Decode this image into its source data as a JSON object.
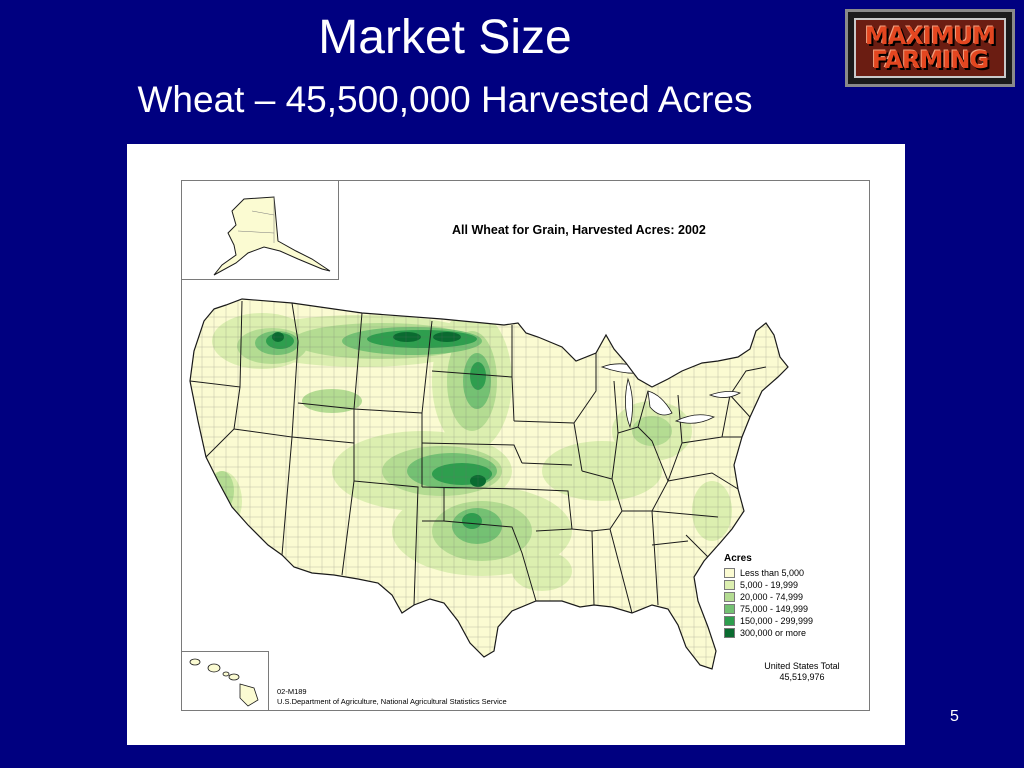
{
  "slide": {
    "title": "Market Size",
    "subtitle": "Wheat – 45,500,000 Harvested Acres",
    "page_number": "5"
  },
  "logo": {
    "line1": "MAXIMUM",
    "line2": "FARMING"
  },
  "map": {
    "title": "All Wheat for Grain, Harvested Acres:  2002",
    "legend": {
      "title": "Acres",
      "items": [
        {
          "label": "Less than 5,000",
          "color": "#fbfbd2"
        },
        {
          "label": "5,000 - 19,999",
          "color": "#dcefb0"
        },
        {
          "label": "20,000 - 74,999",
          "color": "#b4dc92"
        },
        {
          "label": "75,000 - 149,999",
          "color": "#74c173"
        },
        {
          "label": "150,000 - 299,999",
          "color": "#2e9e4e"
        },
        {
          "label": "300,000 or more",
          "color": "#0a6b30"
        }
      ]
    },
    "total_label": "United States Total",
    "total_value": "45,519,976",
    "source_code": "02-M189",
    "source_agency": "U.S.Department of Agriculture, National Agricultural Statistics Service"
  }
}
